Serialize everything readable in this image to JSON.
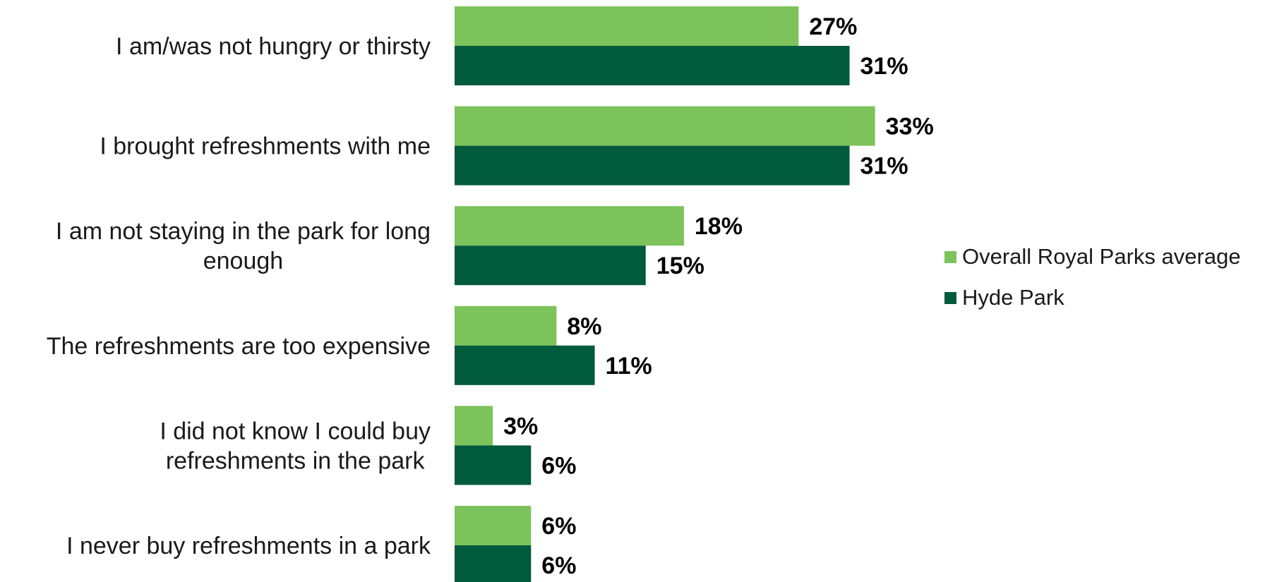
{
  "chart_data": {
    "type": "bar",
    "orientation": "horizontal",
    "categories": [
      [
        "I am/was not hungry or thirsty"
      ],
      [
        "I brought refreshments with me"
      ],
      [
        "I am not staying in the park for long",
        "enough"
      ],
      [
        "The refreshments are too expensive"
      ],
      [
        "I did not know I could buy",
        "refreshments in the park"
      ],
      [
        "I never buy refreshments in a park"
      ]
    ],
    "series": [
      {
        "name": "Overall Royal Parks average",
        "color": "#7DC35B",
        "values": [
          27,
          33,
          18,
          8,
          3,
          6
        ],
        "labels": [
          "27%",
          "33%",
          "18%",
          "8%",
          "3%",
          "6%"
        ]
      },
      {
        "name": "Hyde Park",
        "color": "#005A3C",
        "values": [
          31,
          31,
          15,
          11,
          6,
          6
        ],
        "labels": [
          "31%",
          "31%",
          "15%",
          "11%",
          "6%",
          "6%"
        ]
      }
    ],
    "xlim": [
      0,
      50
    ],
    "grid": false,
    "legend_position": "right"
  }
}
